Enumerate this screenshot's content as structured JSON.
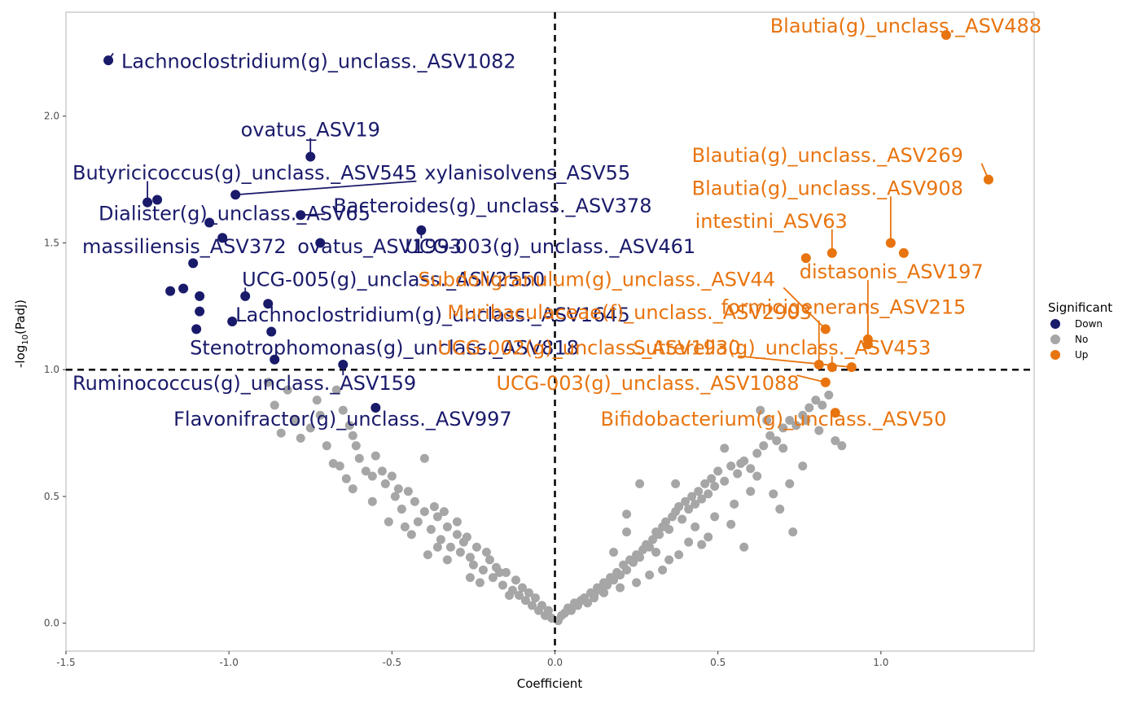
{
  "chart_data": {
    "type": "scatter",
    "title": "",
    "xlabel": "Coefficient",
    "ylabel_main": "-log",
    "ylabel_sub": "10",
    "ylabel_tail": "(Padj)",
    "xlim": [
      -1.5,
      1.47
    ],
    "ylim": [
      -0.11,
      2.41
    ],
    "x_ticks": [
      -1.5,
      -1.0,
      -0.5,
      0.0,
      0.5,
      1.0
    ],
    "x_tick_labels": [
      "-1.5",
      "-1.0",
      "-0.5",
      "0.0",
      "0.5",
      "1.0"
    ],
    "y_ticks": [
      0.0,
      0.5,
      1.0,
      1.5,
      2.0
    ],
    "y_tick_labels": [
      "0.0",
      "0.5",
      "1.0",
      "1.5",
      "2.0"
    ],
    "threshold_x": 0,
    "threshold_y": 1.0,
    "grid": false,
    "legend_placement": "right",
    "legend": {
      "title": "Significant",
      "entries": [
        {
          "key": "Down",
          "label": "Down",
          "color": "#1a1a6b"
        },
        {
          "key": "No",
          "label": "No",
          "color": "#a6a6a6"
        },
        {
          "key": "Up",
          "label": "Up",
          "color": "#e8740f"
        }
      ]
    },
    "down_points": [
      {
        "x": -1.37,
        "y": 2.22,
        "label": "Lachnoclostridium(g)_unclass._ASV1082",
        "lx": -1.33,
        "ly": 2.19,
        "anchor": "start"
      },
      {
        "x": -0.75,
        "y": 1.84,
        "label": "ovatus_ASV19",
        "lx": -0.75,
        "ly": 1.92,
        "anchor": "middle"
      },
      {
        "x": -0.98,
        "y": 1.69,
        "label": "xylanisolvens_ASV55",
        "lx": -0.4,
        "ly": 1.75,
        "anchor": "start"
      },
      {
        "x": -1.25,
        "y": 1.66,
        "label": "Butyricicoccus(g)_unclass._ASV545",
        "lx": -1.48,
        "ly": 1.75,
        "anchor": "start"
      },
      {
        "x": -1.22,
        "y": 1.67,
        "label": "",
        "lx": null,
        "ly": null,
        "anchor": "start"
      },
      {
        "x": -0.78,
        "y": 1.61,
        "label": "Bacteroides(g)_unclass._ASV378",
        "lx": -0.68,
        "ly": 1.62,
        "anchor": "start"
      },
      {
        "x": -1.06,
        "y": 1.58,
        "label": "Dialister(g)_unclass._ASV65",
        "lx": -1.4,
        "ly": 1.59,
        "anchor": "start"
      },
      {
        "x": -0.41,
        "y": 1.55,
        "label": "UCG-003(g)_unclass._ASV461",
        "lx": -0.46,
        "ly": 1.46,
        "anchor": "start"
      },
      {
        "x": -1.02,
        "y": 1.52,
        "label": "massiliensis_ASV372",
        "lx": -1.45,
        "ly": 1.46,
        "anchor": "start"
      },
      {
        "x": -0.72,
        "y": 1.5,
        "label": "ovatus_ASV1993",
        "lx": -0.79,
        "ly": 1.46,
        "anchor": "start"
      },
      {
        "x": -1.11,
        "y": 1.42,
        "label": "",
        "lx": null,
        "ly": null,
        "anchor": "start"
      },
      {
        "x": -1.18,
        "y": 1.31,
        "label": "",
        "lx": null,
        "ly": null,
        "anchor": "start"
      },
      {
        "x": -1.14,
        "y": 1.32,
        "label": "",
        "lx": null,
        "ly": null,
        "anchor": "start"
      },
      {
        "x": -1.09,
        "y": 1.29,
        "label": "",
        "lx": null,
        "ly": null,
        "anchor": "start"
      },
      {
        "x": -0.95,
        "y": 1.29,
        "label": "UCG-005(g)_unclass._ASV2550",
        "lx": -0.96,
        "ly": 1.33,
        "anchor": "start"
      },
      {
        "x": -0.88,
        "y": 1.26,
        "label": "",
        "lx": null,
        "ly": null,
        "anchor": "start"
      },
      {
        "x": -1.09,
        "y": 1.23,
        "label": "",
        "lx": null,
        "ly": null,
        "anchor": "start"
      },
      {
        "x": -0.99,
        "y": 1.19,
        "label": "Lachnoclostridium(g)_unclass._ASV1645",
        "lx": -0.98,
        "ly": 1.19,
        "anchor": "start"
      },
      {
        "x": -1.1,
        "y": 1.16,
        "label": "",
        "lx": null,
        "ly": null,
        "anchor": "start"
      },
      {
        "x": -0.87,
        "y": 1.15,
        "label": "",
        "lx": null,
        "ly": null,
        "anchor": "start"
      },
      {
        "x": -0.86,
        "y": 1.04,
        "label": "Stenotrophomonas(g)_unclass._ASV818",
        "lx": -1.12,
        "ly": 1.06,
        "anchor": "start"
      },
      {
        "x": -0.65,
        "y": 1.02,
        "label": "Ruminococcus(g)_unclass._ASV159",
        "lx": -1.48,
        "ly": 0.92,
        "anchor": "start"
      },
      {
        "x": -0.55,
        "y": 0.85,
        "label": "Flavonifractor(g)_unclass._ASV997",
        "lx": -1.17,
        "ly": 0.78,
        "anchor": "start"
      }
    ],
    "up_points": [
      {
        "x": 1.2,
        "y": 2.32,
        "label": "Blautia(g)_unclass._ASV488",
        "lx": 0.66,
        "ly": 2.33,
        "anchor": "start"
      },
      {
        "x": 1.33,
        "y": 1.75,
        "label": "Blautia(g)_unclass._ASV269",
        "lx": 0.42,
        "ly": 1.82,
        "anchor": "start"
      },
      {
        "x": 1.03,
        "y": 1.5,
        "label": "Blautia(g)_unclass._ASV908",
        "lx": 0.42,
        "ly": 1.69,
        "anchor": "start"
      },
      {
        "x": 1.07,
        "y": 1.46,
        "label": "",
        "lx": null,
        "ly": null,
        "anchor": "start"
      },
      {
        "x": 0.77,
        "y": 1.44,
        "label": "",
        "lx": null,
        "ly": null,
        "anchor": "start"
      },
      {
        "x": 0.85,
        "y": 1.46,
        "label": "intestini_ASV63",
        "lx": 0.43,
        "ly": 1.56,
        "anchor": "start"
      },
      {
        "x": 0.96,
        "y": 1.12,
        "label": "distasonis_ASV197",
        "lx": 0.75,
        "ly": 1.36,
        "anchor": "start"
      },
      {
        "x": 0.96,
        "y": 1.1,
        "label": "formicigenerans_ASV215",
        "lx": 0.51,
        "ly": 1.22,
        "anchor": "start"
      },
      {
        "x": 0.83,
        "y": 1.16,
        "label": "Subdoligranulum(g)_unclass._ASV44",
        "lx": -0.42,
        "ly": 1.33,
        "anchor": "start"
      },
      {
        "x": 0.81,
        "y": 1.02,
        "label": "Muribaculaceae(f)_unclass._ASV2903",
        "lx": -0.33,
        "ly": 1.2,
        "anchor": "start"
      },
      {
        "x": 0.85,
        "y": 1.01,
        "label": "Sutterella(g)_unclass._ASV453",
        "lx": 0.24,
        "ly": 1.06,
        "anchor": "start"
      },
      {
        "x": 0.91,
        "y": 1.01,
        "label": "UCG-002(g)_unclass._ASV1930",
        "lx": -0.36,
        "ly": 1.06,
        "anchor": "start"
      },
      {
        "x": 0.83,
        "y": 0.95,
        "label": "UCG-003(g)_unclass._ASV1088",
        "lx": -0.18,
        "ly": 0.92,
        "anchor": "start"
      },
      {
        "x": 0.86,
        "y": 0.83,
        "label": "Bifidobacterium(g)_unclass._ASV50",
        "lx": 0.14,
        "ly": 0.78,
        "anchor": "start"
      }
    ],
    "no_points": [
      [
        -0.88,
        0.95
      ],
      [
        -0.82,
        0.92
      ],
      [
        -0.86,
        0.86
      ],
      [
        -0.8,
        0.8
      ],
      [
        -0.84,
        0.75
      ],
      [
        -0.78,
        0.73
      ],
      [
        -0.73,
        0.88
      ],
      [
        -0.72,
        0.82
      ],
      [
        -0.75,
        0.77
      ],
      [
        -0.7,
        0.7
      ],
      [
        -0.68,
        0.63
      ],
      [
        -0.67,
        0.92
      ],
      [
        -0.65,
        0.84
      ],
      [
        -0.63,
        0.78
      ],
      [
        -0.62,
        0.74
      ],
      [
        -0.61,
        0.7
      ],
      [
        -0.66,
        0.62
      ],
      [
        -0.6,
        0.65
      ],
      [
        -0.64,
        0.57
      ],
      [
        -0.62,
        0.53
      ],
      [
        -0.58,
        0.6
      ],
      [
        -0.56,
        0.58
      ],
      [
        -0.55,
        0.66
      ],
      [
        -0.53,
        0.6
      ],
      [
        -0.52,
        0.55
      ],
      [
        -0.5,
        0.58
      ],
      [
        -0.49,
        0.5
      ],
      [
        -0.48,
        0.53
      ],
      [
        -0.47,
        0.45
      ],
      [
        -0.45,
        0.52
      ],
      [
        -0.43,
        0.48
      ],
      [
        -0.42,
        0.4
      ],
      [
        -0.4,
        0.44
      ],
      [
        -0.38,
        0.37
      ],
      [
        -0.36,
        0.42
      ],
      [
        -0.35,
        0.33
      ],
      [
        -0.33,
        0.38
      ],
      [
        -0.32,
        0.3
      ],
      [
        -0.3,
        0.35
      ],
      [
        -0.29,
        0.28
      ],
      [
        -0.28,
        0.32
      ],
      [
        -0.26,
        0.26
      ],
      [
        -0.25,
        0.23
      ],
      [
        -0.24,
        0.3
      ],
      [
        -0.22,
        0.21
      ],
      [
        -0.2,
        0.25
      ],
      [
        -0.19,
        0.18
      ],
      [
        -0.18,
        0.22
      ],
      [
        -0.16,
        0.15
      ],
      [
        -0.15,
        0.2
      ],
      [
        -0.13,
        0.13
      ],
      [
        -0.12,
        0.17
      ],
      [
        -0.11,
        0.11
      ],
      [
        -0.1,
        0.14
      ],
      [
        -0.09,
        0.09
      ],
      [
        -0.08,
        0.12
      ],
      [
        -0.07,
        0.07
      ],
      [
        -0.06,
        0.1
      ],
      [
        -0.05,
        0.05
      ],
      [
        -0.04,
        0.07
      ],
      [
        -0.03,
        0.03
      ],
      [
        -0.02,
        0.05
      ],
      [
        -0.01,
        0.02
      ],
      [
        -0.3,
        0.4
      ],
      [
        -0.37,
        0.46
      ],
      [
        -0.27,
        0.34
      ],
      [
        -0.21,
        0.28
      ],
      [
        -0.17,
        0.2
      ],
      [
        -0.4,
        0.65
      ],
      [
        -0.34,
        0.44
      ],
      [
        -0.56,
        0.48
      ],
      [
        -0.51,
        0.4
      ],
      [
        -0.44,
        0.35
      ],
      [
        -0.39,
        0.27
      ],
      [
        -0.33,
        0.25
      ],
      [
        -0.26,
        0.18
      ],
      [
        -0.23,
        0.16
      ],
      [
        -0.14,
        0.11
      ],
      [
        -0.46,
        0.38
      ],
      [
        -0.36,
        0.3
      ],
      [
        0.01,
        0.01
      ],
      [
        0.02,
        0.03
      ],
      [
        0.03,
        0.04
      ],
      [
        0.04,
        0.06
      ],
      [
        0.05,
        0.05
      ],
      [
        0.06,
        0.08
      ],
      [
        0.07,
        0.07
      ],
      [
        0.08,
        0.09
      ],
      [
        0.09,
        0.1
      ],
      [
        0.1,
        0.08
      ],
      [
        0.11,
        0.12
      ],
      [
        0.12,
        0.11
      ],
      [
        0.13,
        0.14
      ],
      [
        0.14,
        0.13
      ],
      [
        0.15,
        0.16
      ],
      [
        0.16,
        0.15
      ],
      [
        0.17,
        0.18
      ],
      [
        0.18,
        0.17
      ],
      [
        0.19,
        0.2
      ],
      [
        0.2,
        0.19
      ],
      [
        0.21,
        0.23
      ],
      [
        0.22,
        0.21
      ],
      [
        0.23,
        0.25
      ],
      [
        0.24,
        0.24
      ],
      [
        0.25,
        0.27
      ],
      [
        0.26,
        0.26
      ],
      [
        0.27,
        0.29
      ],
      [
        0.28,
        0.31
      ],
      [
        0.29,
        0.3
      ],
      [
        0.3,
        0.33
      ],
      [
        0.31,
        0.36
      ],
      [
        0.32,
        0.35
      ],
      [
        0.33,
        0.38
      ],
      [
        0.34,
        0.4
      ],
      [
        0.35,
        0.37
      ],
      [
        0.36,
        0.42
      ],
      [
        0.37,
        0.44
      ],
      [
        0.38,
        0.46
      ],
      [
        0.39,
        0.41
      ],
      [
        0.4,
        0.48
      ],
      [
        0.41,
        0.45
      ],
      [
        0.42,
        0.5
      ],
      [
        0.43,
        0.47
      ],
      [
        0.44,
        0.52
      ],
      [
        0.45,
        0.49
      ],
      [
        0.46,
        0.55
      ],
      [
        0.47,
        0.51
      ],
      [
        0.48,
        0.57
      ],
      [
        0.49,
        0.54
      ],
      [
        0.5,
        0.6
      ],
      [
        0.52,
        0.56
      ],
      [
        0.54,
        0.62
      ],
      [
        0.56,
        0.59
      ],
      [
        0.58,
        0.64
      ],
      [
        0.6,
        0.61
      ],
      [
        0.62,
        0.67
      ],
      [
        0.64,
        0.7
      ],
      [
        0.66,
        0.74
      ],
      [
        0.68,
        0.72
      ],
      [
        0.7,
        0.77
      ],
      [
        0.72,
        0.8
      ],
      [
        0.74,
        0.78
      ],
      [
        0.76,
        0.82
      ],
      [
        0.78,
        0.85
      ],
      [
        0.8,
        0.88
      ],
      [
        0.82,
        0.86
      ],
      [
        0.84,
        0.9
      ],
      [
        0.86,
        0.72
      ],
      [
        0.88,
        0.7
      ],
      [
        0.63,
        0.84
      ],
      [
        0.65,
        0.8
      ],
      [
        0.7,
        0.69
      ],
      [
        0.72,
        0.55
      ],
      [
        0.76,
        0.62
      ],
      [
        0.73,
        0.36
      ],
      [
        0.58,
        0.3
      ],
      [
        0.55,
        0.47
      ],
      [
        0.45,
        0.31
      ],
      [
        0.38,
        0.27
      ],
      [
        0.35,
        0.25
      ],
      [
        0.22,
        0.43
      ],
      [
        0.22,
        0.36
      ],
      [
        0.18,
        0.28
      ],
      [
        0.26,
        0.55
      ],
      [
        0.37,
        0.55
      ],
      [
        0.41,
        0.32
      ],
      [
        0.33,
        0.21
      ],
      [
        0.29,
        0.19
      ],
      [
        0.25,
        0.16
      ],
      [
        0.2,
        0.14
      ],
      [
        0.12,
        0.1
      ],
      [
        0.15,
        0.12
      ],
      [
        0.52,
        0.69
      ],
      [
        0.57,
        0.63
      ],
      [
        0.62,
        0.58
      ],
      [
        0.67,
        0.51
      ],
      [
        0.69,
        0.45
      ],
      [
        0.77,
        0.8
      ],
      [
        0.81,
        0.76
      ],
      [
        0.6,
        0.52
      ],
      [
        0.54,
        0.39
      ],
      [
        0.49,
        0.42
      ],
      [
        0.43,
        0.38
      ],
      [
        0.47,
        0.34
      ],
      [
        0.31,
        0.28
      ]
    ]
  }
}
